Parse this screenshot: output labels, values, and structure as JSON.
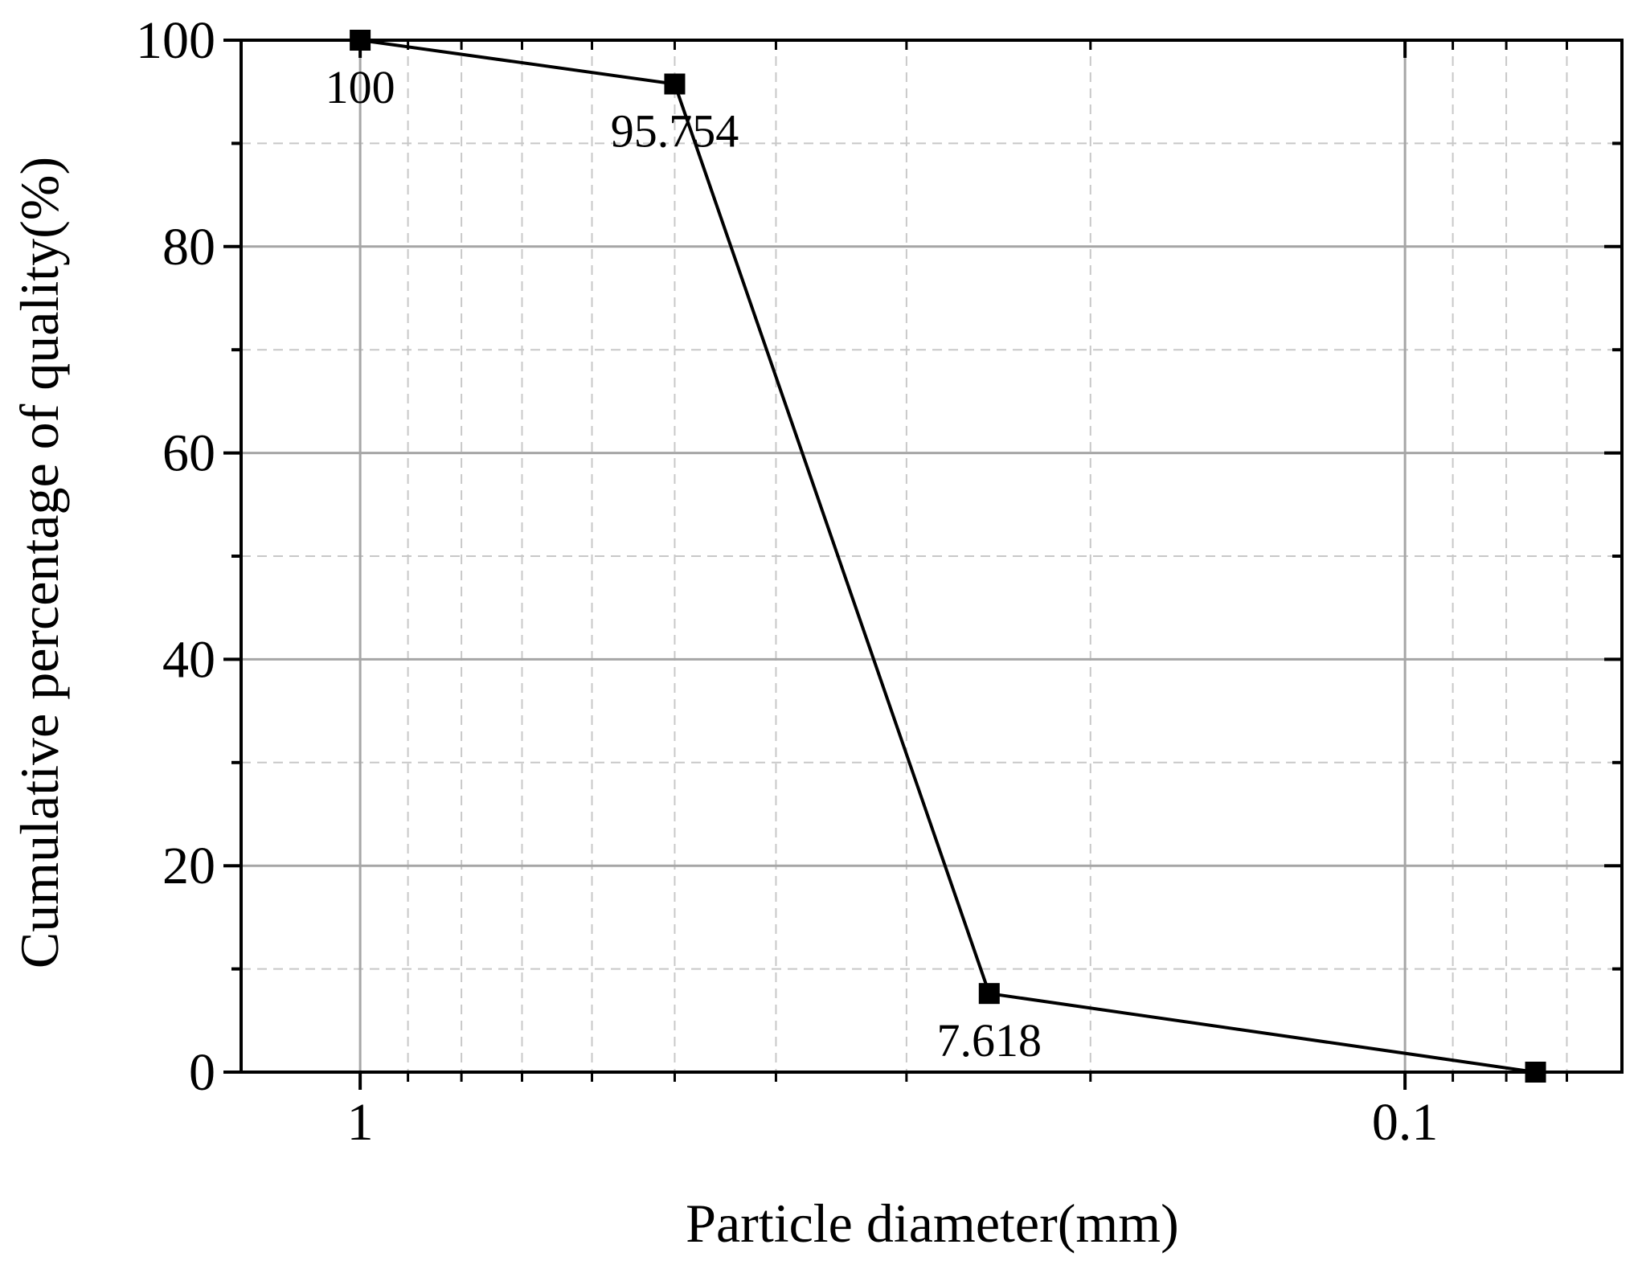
{
  "chart_data": {
    "type": "line",
    "xlabel": "Particle diameter(mm)",
    "ylabel": "Cumulative percentage of quality(%)",
    "x_scale": "log",
    "x_reversed": true,
    "xlim": [
      1.3,
      0.062
    ],
    "ylim": [
      0,
      100
    ],
    "x_ticks": [
      1,
      0.1
    ],
    "x_tick_labels": [
      "1",
      "0.1"
    ],
    "y_ticks": [
      0,
      20,
      40,
      60,
      80,
      100
    ],
    "y_tick_labels": [
      "0",
      "20",
      "40",
      "60",
      "80",
      "100"
    ],
    "grid": true,
    "series": [
      {
        "x": [
          1,
          0.5,
          0.25,
          0.075
        ],
        "y": [
          100,
          95.754,
          7.618,
          0
        ],
        "labels": [
          "100",
          "95.754",
          "7.618",
          ""
        ],
        "marker": "square",
        "color": "#000000"
      }
    ]
  }
}
